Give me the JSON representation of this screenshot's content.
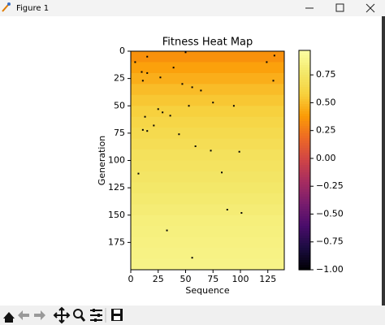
{
  "window": {
    "title": "Figure 1"
  },
  "chart_data": {
    "type": "heatmap",
    "title": "Fitness Heat Map",
    "xlabel": "Sequence",
    "ylabel": "Generation",
    "cmap": "inferno",
    "xlim": [
      0,
      140
    ],
    "ylim": [
      200,
      0
    ],
    "xticks": [
      0,
      25,
      50,
      75,
      100,
      125
    ],
    "yticks": [
      0,
      25,
      50,
      75,
      100,
      125,
      150,
      175
    ],
    "rows": [
      0,
      10,
      20,
      30,
      40,
      50,
      60,
      70,
      80,
      90,
      100,
      110,
      120,
      130,
      140,
      150,
      160,
      170,
      180,
      190,
      200
    ],
    "values": [
      0.34,
      0.4,
      0.45,
      0.5,
      0.54,
      0.58,
      0.62,
      0.65,
      0.68,
      0.71,
      0.73,
      0.75,
      0.77,
      0.79,
      0.81,
      0.83,
      0.84,
      0.85,
      0.86,
      0.87
    ],
    "points": [
      {
        "x": 4,
        "y": 10,
        "value": -1
      },
      {
        "x": 15,
        "y": 5,
        "value": -1
      },
      {
        "x": 39,
        "y": 15,
        "value": -1
      },
      {
        "x": 50,
        "y": 1,
        "value": -1
      },
      {
        "x": 124,
        "y": 10,
        "value": -1
      },
      {
        "x": 131,
        "y": 4,
        "value": -1
      },
      {
        "x": 10,
        "y": 19,
        "value": -1
      },
      {
        "x": 15,
        "y": 20,
        "value": -1
      },
      {
        "x": 27,
        "y": 24,
        "value": -1
      },
      {
        "x": 11,
        "y": 27,
        "value": -1
      },
      {
        "x": 47,
        "y": 30,
        "value": -1
      },
      {
        "x": 56,
        "y": 33,
        "value": -1
      },
      {
        "x": 64,
        "y": 36,
        "value": -1
      },
      {
        "x": 130,
        "y": 27,
        "value": -1
      },
      {
        "x": 25,
        "y": 53,
        "value": -1
      },
      {
        "x": 29,
        "y": 56,
        "value": -1
      },
      {
        "x": 36,
        "y": 59,
        "value": -1
      },
      {
        "x": 13,
        "y": 60,
        "value": -1
      },
      {
        "x": 53,
        "y": 50,
        "value": -1
      },
      {
        "x": 75,
        "y": 47,
        "value": -1
      },
      {
        "x": 94,
        "y": 50,
        "value": -1
      },
      {
        "x": 21,
        "y": 68,
        "value": -1
      },
      {
        "x": 11,
        "y": 72,
        "value": -1
      },
      {
        "x": 15,
        "y": 73,
        "value": -1
      },
      {
        "x": 44,
        "y": 76,
        "value": -1
      },
      {
        "x": 59,
        "y": 87,
        "value": -1
      },
      {
        "x": 73,
        "y": 91,
        "value": -1
      },
      {
        "x": 99,
        "y": 92,
        "value": -1
      },
      {
        "x": 7,
        "y": 112,
        "value": -1
      },
      {
        "x": 83,
        "y": 111,
        "value": -1
      },
      {
        "x": 88,
        "y": 145,
        "value": -1
      },
      {
        "x": 101,
        "y": 148,
        "value": -1
      },
      {
        "x": 33,
        "y": 164,
        "value": -1
      },
      {
        "x": 56,
        "y": 189,
        "value": -1
      }
    ],
    "clim": [
      -1,
      0.97
    ],
    "cticks": [
      {
        "value": -1,
        "label": "−1.00"
      },
      {
        "value": -0.75,
        "label": "−0.75"
      },
      {
        "value": -0.5,
        "label": "−0.50"
      },
      {
        "value": -0.25,
        "label": "−0.25"
      },
      {
        "value": 0,
        "label": "0.00"
      },
      {
        "value": 0.25,
        "label": "0.25"
      },
      {
        "value": 0.5,
        "label": "0.50"
      },
      0.75
    ]
  }
}
